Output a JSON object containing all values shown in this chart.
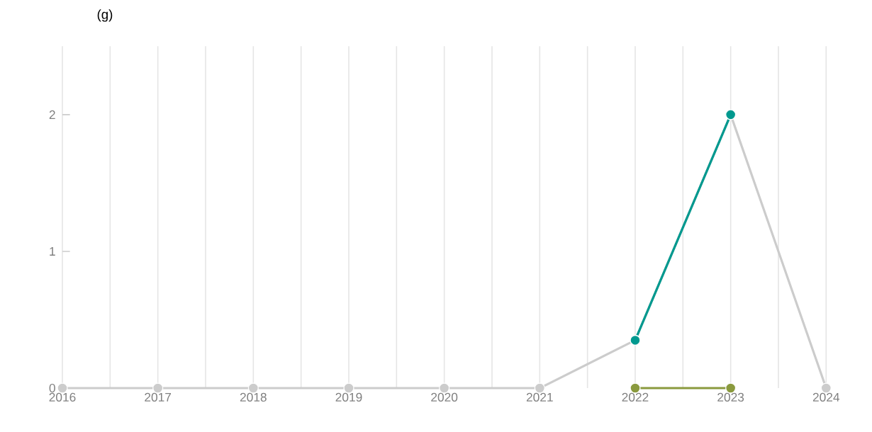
{
  "chart_data": {
    "type": "line",
    "ylabel": "(g)",
    "x": [
      2016,
      2017,
      2018,
      2019,
      2020,
      2021,
      2022,
      2023,
      2024
    ],
    "series": [
      {
        "color": "#cccccc",
        "values": [
          0,
          0,
          0,
          0,
          0,
          0,
          0.35,
          2,
          0
        ]
      },
      {
        "color": "#8a9a3e",
        "values": [
          null,
          null,
          null,
          null,
          null,
          null,
          0,
          0,
          null
        ]
      },
      {
        "color": "#00998f",
        "values": [
          null,
          null,
          null,
          null,
          null,
          null,
          0.35,
          2,
          null
        ]
      }
    ],
    "xlim": [
      2016,
      2024
    ],
    "xticks": [
      2016,
      {
        "value": 2016.5,
        "label": null
      },
      2017,
      {
        "value": 2017.5,
        "label": null
      },
      2018,
      {
        "value": 2018.5,
        "label": null
      },
      2019,
      {
        "value": 2019.5,
        "label": null
      },
      2020,
      {
        "value": 2020.5,
        "label": null
      },
      2021,
      {
        "value": 2021.5,
        "label": null
      },
      2022,
      {
        "value": 2022.5,
        "label": null
      },
      2023,
      {
        "value": 2023.5,
        "label": null
      },
      2024
    ],
    "ylim": [
      0,
      2.5
    ],
    "yticks": [
      0,
      1,
      2
    ],
    "grid": "x",
    "marker": "circle",
    "line_style": "solid"
  }
}
